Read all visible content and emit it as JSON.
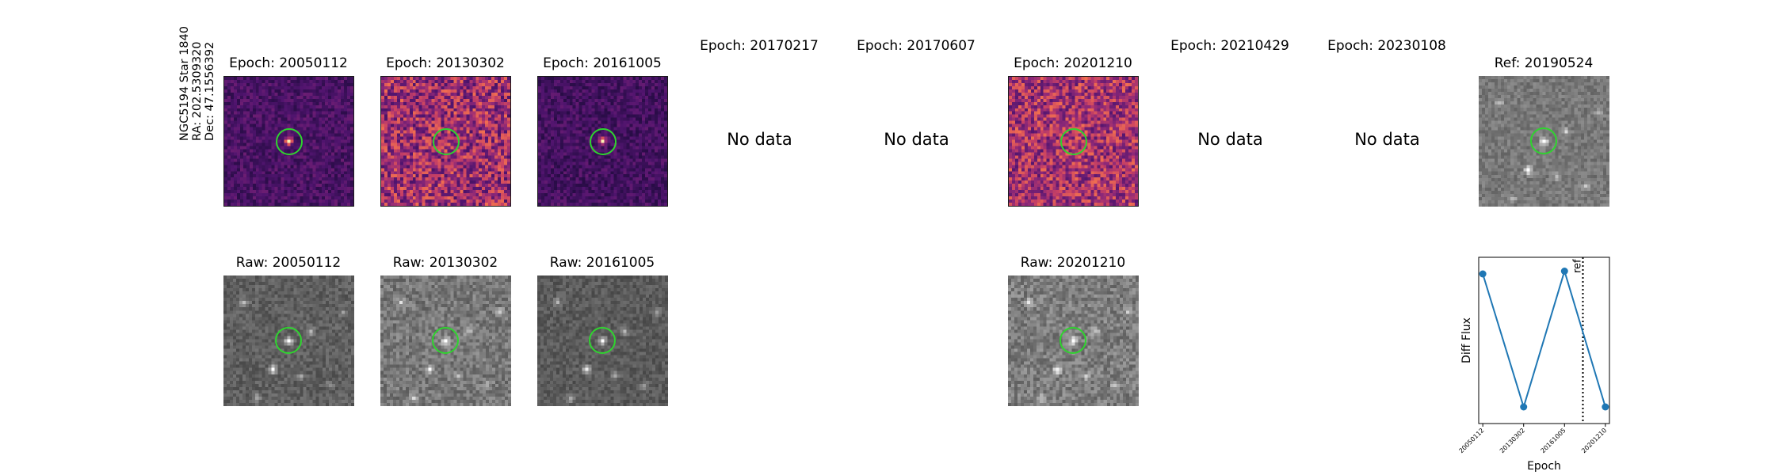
{
  "star": {
    "name": "NGC5194 Star 1840",
    "ra": "RA: 202.5309320",
    "dec": "Dec: 47.1556392"
  },
  "epochs": [
    {
      "title": "Epoch: 20050112",
      "raw_title": "Raw: 20050112",
      "has_data": true
    },
    {
      "title": "Epoch: 20130302",
      "raw_title": "Raw: 20130302",
      "has_data": true
    },
    {
      "title": "Epoch: 20161005",
      "raw_title": "Raw: 20161005",
      "has_data": true
    },
    {
      "title": "Epoch: 20170217",
      "no_data": "No data",
      "has_data": false
    },
    {
      "title": "Epoch: 20170607",
      "no_data": "No data",
      "has_data": false
    },
    {
      "title": "Epoch: 20201210",
      "raw_title": "Raw: 20201210",
      "has_data": true
    },
    {
      "title": "Epoch: 20210429",
      "no_data": "No data",
      "has_data": false
    },
    {
      "title": "Epoch: 20230108",
      "no_data": "No data",
      "has_data": false
    }
  ],
  "reference": {
    "title": "Ref: 20190524"
  },
  "colors": {
    "circle": "#2fd42f",
    "line": "#1f77b4",
    "frame": "#1a1a1a"
  },
  "chart_data": {
    "type": "line",
    "title": "",
    "xlabel": "Epoch",
    "ylabel": "Diff Flux",
    "categories": [
      "20050112",
      "20130302",
      "20161005",
      "20201210"
    ],
    "x": [
      0,
      1,
      2,
      3
    ],
    "values": [
      0.82,
      -0.62,
      0.85,
      -0.62
    ],
    "ylim": [
      -0.8,
      1.0
    ],
    "xlim": [
      -0.1,
      3.1
    ],
    "ref_line": {
      "x": 2.45,
      "label": "ref",
      "style": "dotted"
    },
    "grid": false,
    "legend": "none"
  }
}
